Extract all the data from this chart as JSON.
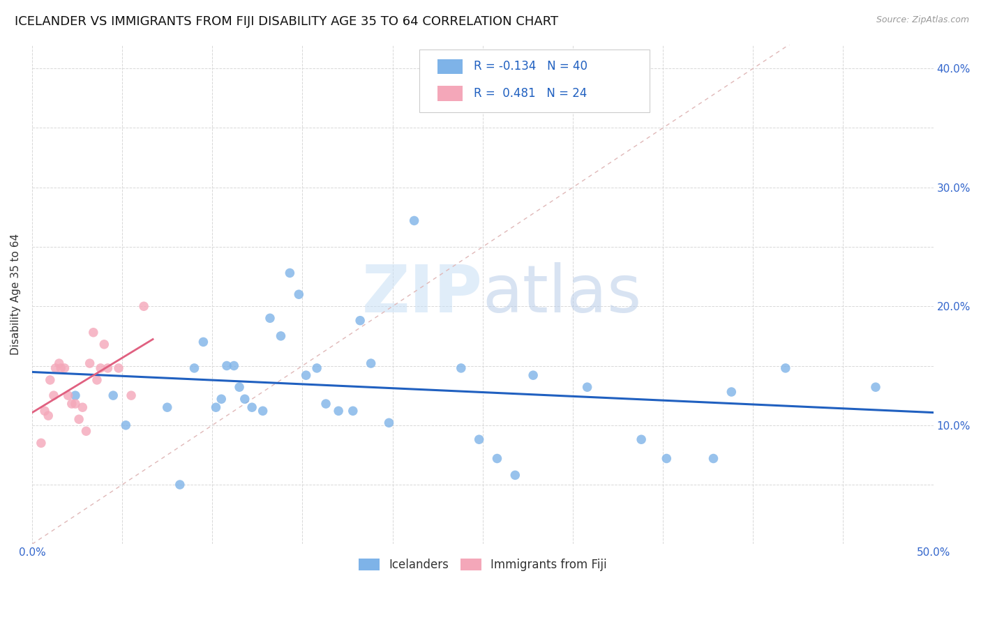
{
  "title": "ICELANDER VS IMMIGRANTS FROM FIJI DISABILITY AGE 35 TO 64 CORRELATION CHART",
  "source": "Source: ZipAtlas.com",
  "ylabel": "Disability Age 35 to 64",
  "xlim": [
    0,
    0.5
  ],
  "ylim": [
    0,
    0.42
  ],
  "icelander_color": "#7eb3e8",
  "fiji_color": "#f4a7b9",
  "trendline_blue_color": "#2060c0",
  "trendline_pink_color": "#e06080",
  "diagonal_color": "#e0b8b8",
  "R_iceland": -0.134,
  "N_iceland": 40,
  "R_fiji": 0.481,
  "N_fiji": 24,
  "iceland_x": [
    0.024,
    0.045,
    0.052,
    0.075,
    0.082,
    0.09,
    0.095,
    0.102,
    0.105,
    0.108,
    0.112,
    0.115,
    0.118,
    0.122,
    0.128,
    0.132,
    0.138,
    0.143,
    0.148,
    0.152,
    0.158,
    0.163,
    0.17,
    0.178,
    0.182,
    0.188,
    0.198,
    0.212,
    0.238,
    0.248,
    0.258,
    0.268,
    0.278,
    0.308,
    0.338,
    0.352,
    0.378,
    0.388,
    0.418,
    0.468
  ],
  "iceland_y": [
    0.125,
    0.125,
    0.1,
    0.115,
    0.05,
    0.148,
    0.17,
    0.115,
    0.122,
    0.15,
    0.15,
    0.132,
    0.122,
    0.115,
    0.112,
    0.19,
    0.175,
    0.228,
    0.21,
    0.142,
    0.148,
    0.118,
    0.112,
    0.112,
    0.188,
    0.152,
    0.102,
    0.272,
    0.148,
    0.088,
    0.072,
    0.058,
    0.142,
    0.132,
    0.088,
    0.072,
    0.072,
    0.128,
    0.148,
    0.132
  ],
  "fiji_x": [
    0.005,
    0.007,
    0.009,
    0.01,
    0.012,
    0.013,
    0.015,
    0.016,
    0.018,
    0.02,
    0.022,
    0.024,
    0.026,
    0.028,
    0.03,
    0.032,
    0.034,
    0.036,
    0.038,
    0.04,
    0.042,
    0.048,
    0.055,
    0.062
  ],
  "fiji_y": [
    0.085,
    0.112,
    0.108,
    0.138,
    0.125,
    0.148,
    0.152,
    0.148,
    0.148,
    0.125,
    0.118,
    0.118,
    0.105,
    0.115,
    0.095,
    0.152,
    0.178,
    0.138,
    0.148,
    0.168,
    0.148,
    0.148,
    0.125,
    0.2
  ],
  "watermark_zip": "ZIP",
  "watermark_atlas": "atlas",
  "marker_size": 95,
  "title_fontsize": 13,
  "label_fontsize": 11,
  "tick_fontsize": 11,
  "legend_fontsize": 12
}
